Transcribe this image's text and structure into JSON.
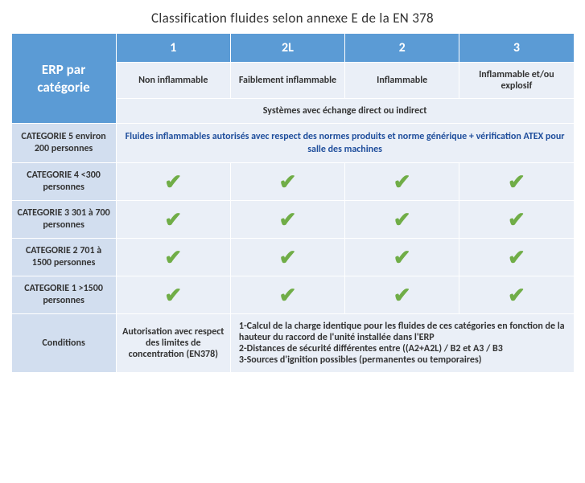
{
  "title": "Classification fluides selon annexe E de la EN 378",
  "columns": {
    "erp_header": "ERP par catégorie",
    "col1_num": "1",
    "col2_num": "2L",
    "col3_num": "2",
    "col4_num": "3",
    "col1_label": "Non inflammable",
    "col2_label": "Faiblement inflammable",
    "col3_label": "Inflammable",
    "col4_label": "Inflammable et/ou explosif"
  },
  "systems_row": "Systèmes avec échange direct ou indirect",
  "cat5": {
    "label": "CATEGORIE 5 environ 200 personnes",
    "text": "Fluides inflammables autorisés avec respect des normes produits et norme générique + vérification ATEX pour salle des machines"
  },
  "cat4": {
    "label": "CATEGORIE 4 <300  personnes"
  },
  "cat3": {
    "label": "CATEGORIE 3 301 à 700 personnes"
  },
  "cat2": {
    "label": "CATEGORIE 2 701 à 1500 personnes"
  },
  "cat1": {
    "label": "CATEGORIE 1 >1500 personnes"
  },
  "conditions": {
    "label": "Conditions",
    "col1": "Autorisation avec respect des limites de concentration (EN378)",
    "right": "1-Calcul de la charge identique pour les fluides de ces catégories en fonction de la hauteur du raccord de l'unité installée dans l'ERP\n2-Distances de sécurité différentes entre ((A2+A2L) / B2 et A3 / B3\n3-Sources d'ignition possibles (permanentes ou temporaires)"
  },
  "check_color": "#70ad47",
  "check_glyph": "✔"
}
